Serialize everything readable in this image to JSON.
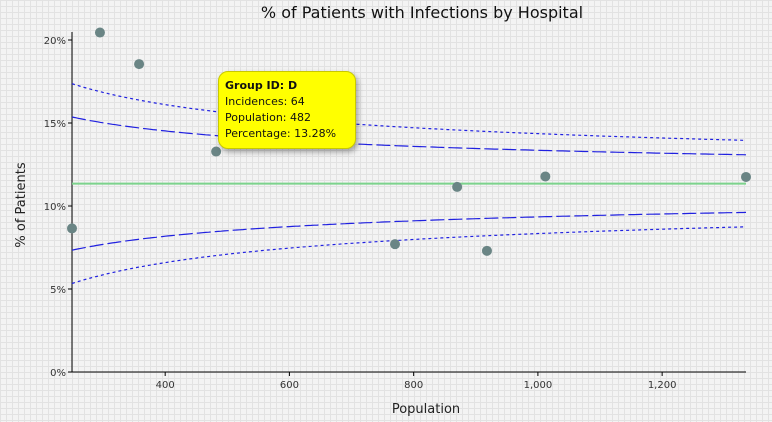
{
  "chart_data": {
    "type": "scatter",
    "title": "% of Patients with Infections by Hospital",
    "xlabel": "Population",
    "ylabel": "% of Patients",
    "xlim": [
      250,
      1335
    ],
    "ylim": [
      0,
      0.2
    ],
    "x_ticks": [
      {
        "value": 400,
        "label": "400"
      },
      {
        "value": 600,
        "label": "600"
      },
      {
        "value": 800,
        "label": "800"
      },
      {
        "value": 1000,
        "label": "1,000"
      },
      {
        "value": 1200,
        "label": "1,200"
      }
    ],
    "y_ticks": [
      {
        "value": 0,
        "label": "0%"
      },
      {
        "value": 0.05,
        "label": "5%"
      },
      {
        "value": 0.1,
        "label": "10%"
      },
      {
        "value": 0.15,
        "label": "15%"
      },
      {
        "value": 0.2,
        "label": "20%"
      }
    ],
    "grid": true,
    "points": [
      {
        "x": 250,
        "y": 0.0865
      },
      {
        "x": 295,
        "y": 0.2045
      },
      {
        "x": 358,
        "y": 0.1855
      },
      {
        "x": 482,
        "y": 0.1328
      },
      {
        "x": 770,
        "y": 0.077
      },
      {
        "x": 870,
        "y": 0.1115
      },
      {
        "x": 918,
        "y": 0.073
      },
      {
        "x": 1012,
        "y": 0.1178
      },
      {
        "x": 1335,
        "y": 0.1175
      }
    ],
    "mean": 0.1135,
    "colors": {
      "point": "#6a8585",
      "mean_line": "#7cd38c",
      "limits": "#2020e0",
      "tooltip_bg": "#ffff00"
    },
    "tooltip": {
      "title": "Group ID: D",
      "incidences": "Incidences: 64",
      "population": "Population: 482",
      "percentage": "Percentage: 13.28%"
    }
  }
}
